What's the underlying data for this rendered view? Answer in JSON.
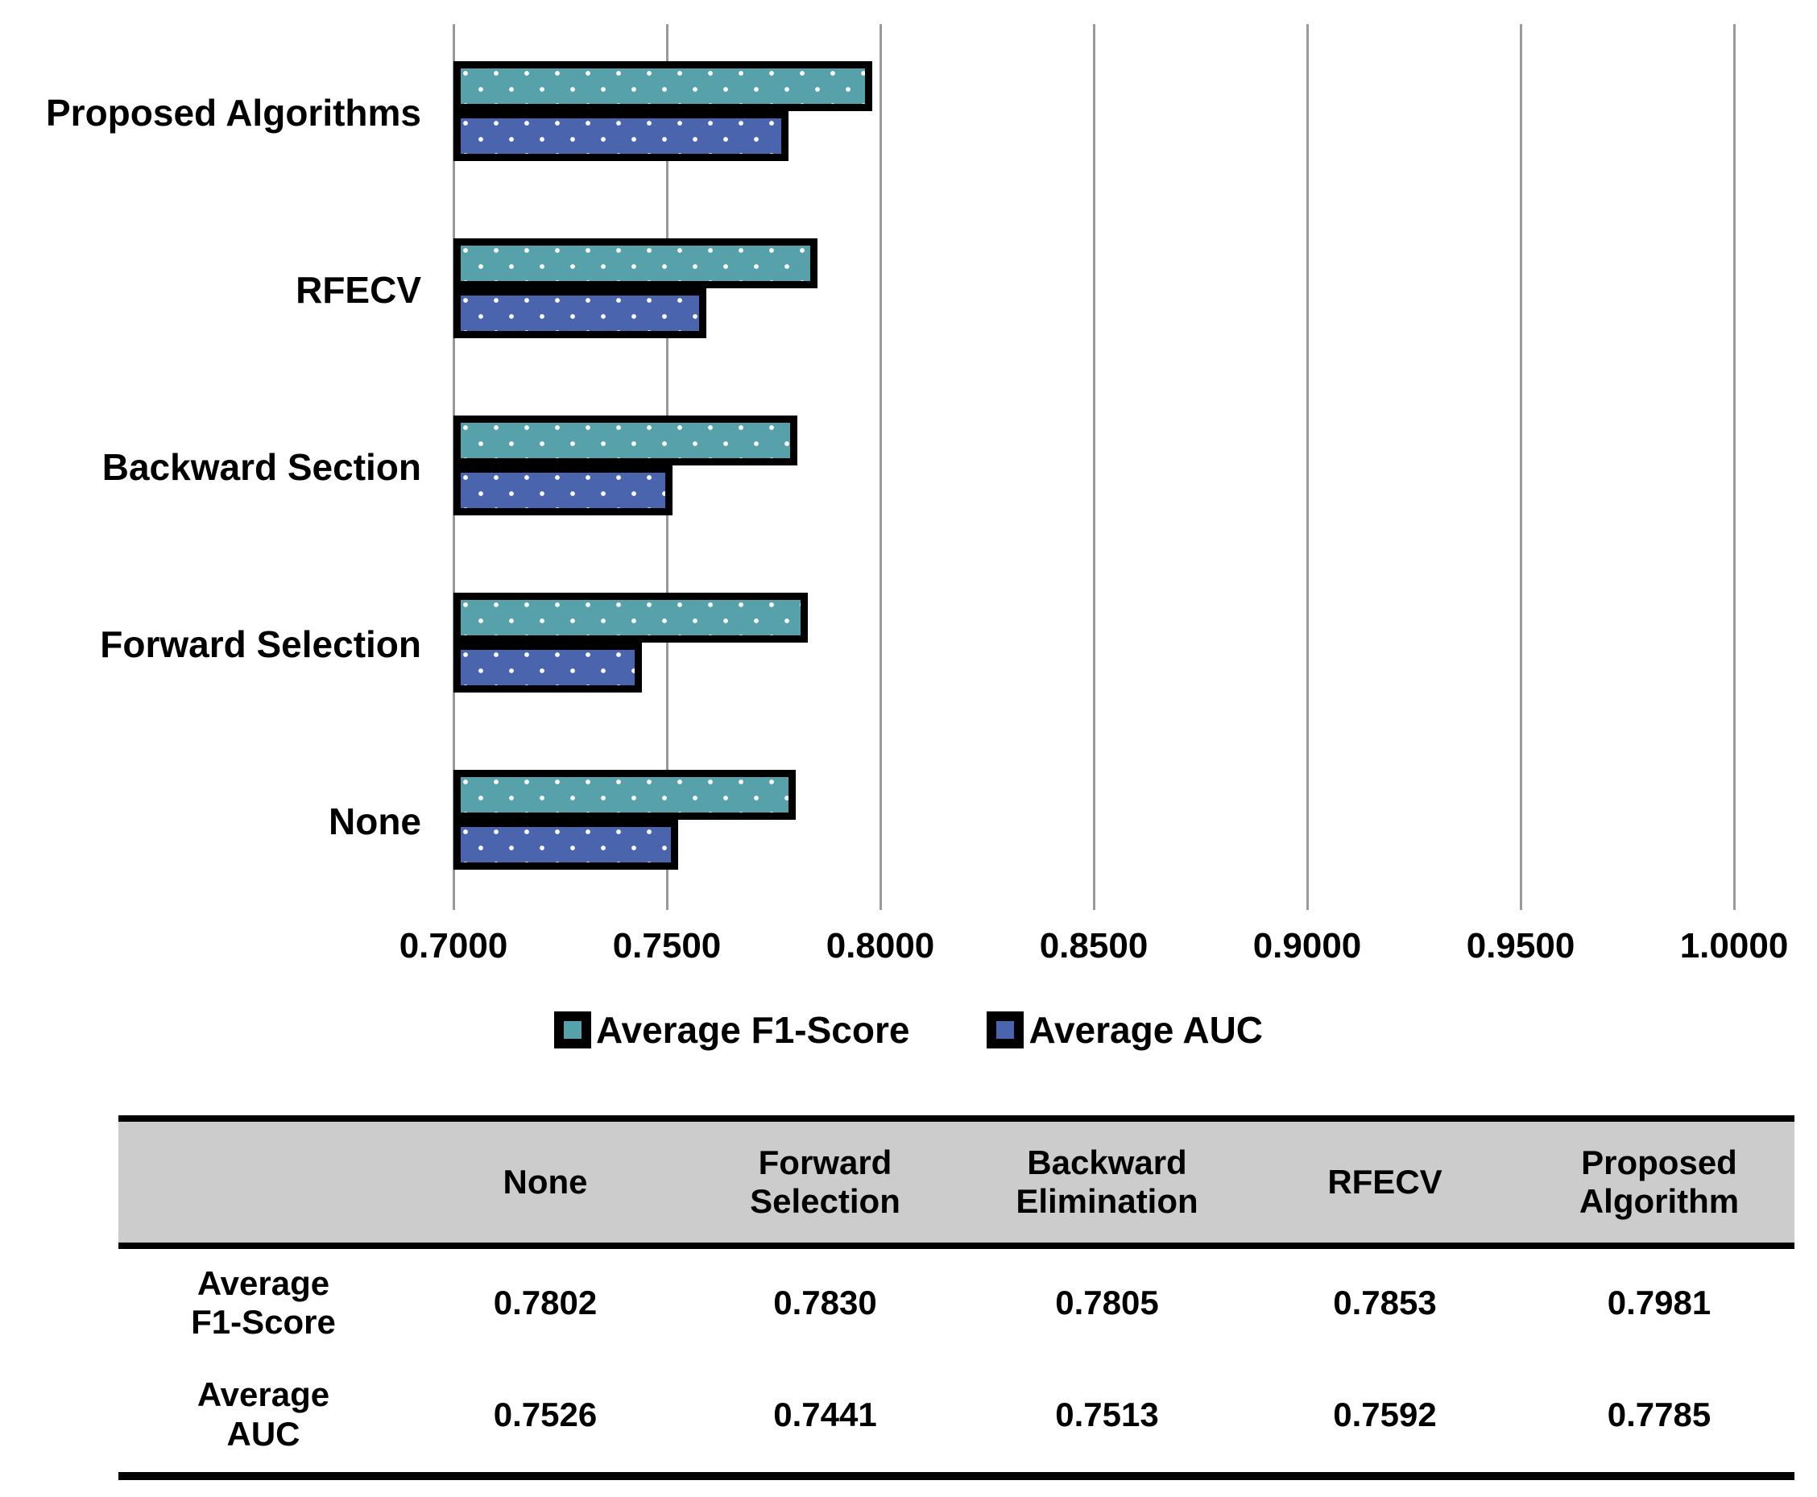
{
  "chart_data": {
    "type": "bar",
    "orientation": "horizontal",
    "title": "",
    "xlabel": "",
    "ylabel": "",
    "categories": [
      "Proposed Algorithms",
      "RFECV",
      "Backward Section",
      "Forward Selection",
      "None"
    ],
    "series": [
      {
        "name": "Average F1-Score",
        "short": "f1",
        "color": "#57a1ab",
        "values": [
          0.7981,
          0.7853,
          0.7805,
          0.783,
          0.7802
        ]
      },
      {
        "name": "Average AUC",
        "short": "auc",
        "color": "#4a64ae",
        "values": [
          0.7785,
          0.7592,
          0.7513,
          0.7441,
          0.7526
        ]
      }
    ],
    "xlim": [
      0.7,
      1.0
    ],
    "xticks": [
      "0.7000",
      "0.7500",
      "0.8000",
      "0.8500",
      "0.9000",
      "0.9500",
      "1.0000"
    ],
    "grid": true,
    "gridline_color": "#999999",
    "bar_pattern": "white-dots",
    "bar_border_color": "#000000",
    "legend_position": "bottom"
  },
  "table": {
    "header_bg": "#cccccc",
    "columns": [
      "",
      "None",
      "Forward\nSelection",
      "Backward\nElimination",
      "RFECV",
      "Proposed\nAlgorithm"
    ],
    "rows": [
      {
        "label": "Average\nF1-Score",
        "values": [
          "0.7802",
          "0.7830",
          "0.7805",
          "0.7853",
          "0.7981"
        ]
      },
      {
        "label": "Average\nAUC",
        "values": [
          "0.7526",
          "0.7441",
          "0.7513",
          "0.7592",
          "0.7785"
        ]
      }
    ]
  }
}
